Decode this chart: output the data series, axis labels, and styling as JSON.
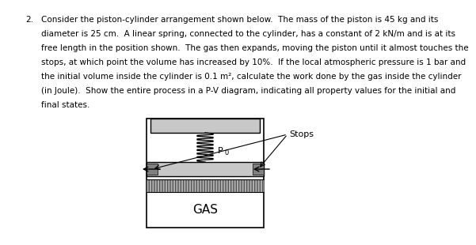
{
  "problem_number": "2.",
  "text_lines": [
    "Consider the piston-cylinder arrangement shown below.  The mass of the piston is 45 kg and its",
    "diameter is 25 cm.  A linear spring, connected to the cylinder, has a constant of 2 kN/m and is at its",
    "free length in the position shown.  The gas then expands, moving the piston until it almost touches the",
    "stops, at which point the volume has increased by 10%.  If the local atmospheric pressure is 1 bar and",
    "the initial volume inside the cylinder is 0.1 m², calculate the work done by the gas inside the cylinder",
    "(in Joule).  Show the entire process in a P-V diagram, indicating all property values for the initial and",
    "final states."
  ],
  "bg_color": "#ffffff",
  "gas_label": "GAS",
  "spring_label": "P",
  "spring_subscript": "0",
  "stops_label": "Stops",
  "cyl_gray": "#c8c8c8",
  "hatch_gray": "#b0b0b0",
  "stop_gray": "#808080"
}
